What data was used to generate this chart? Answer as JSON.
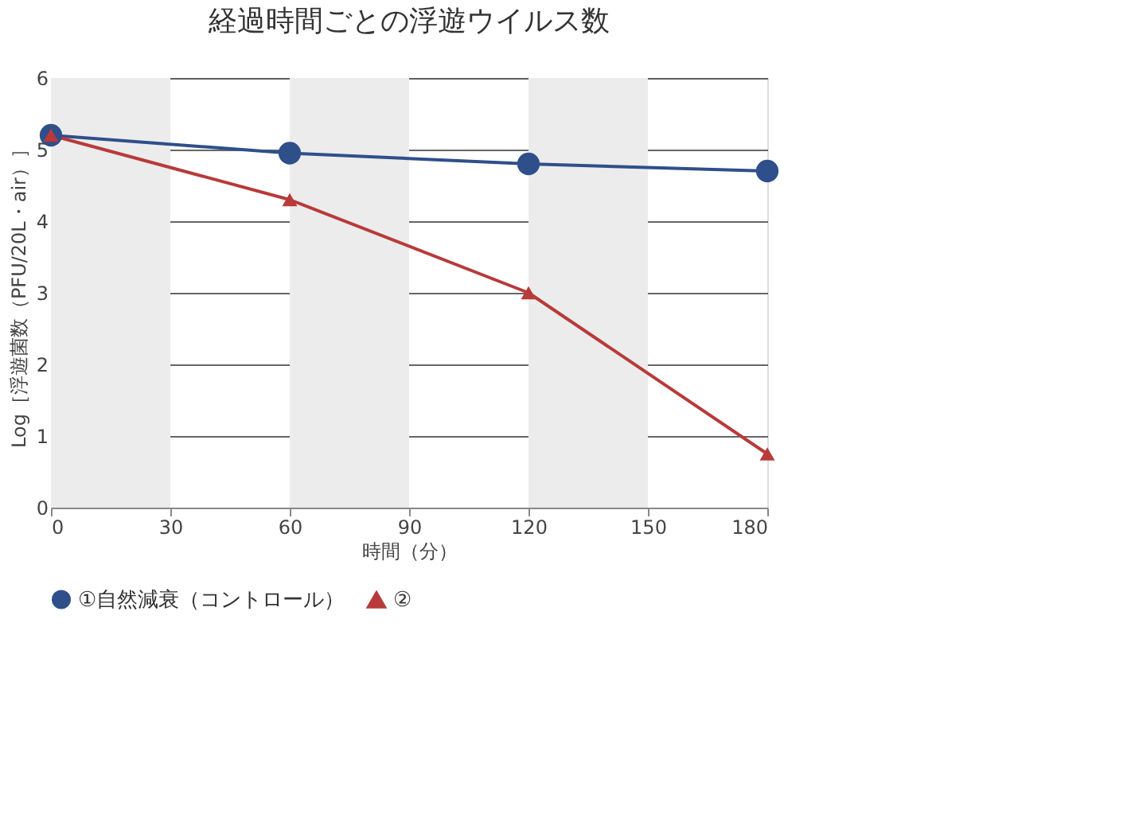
{
  "chart_data": {
    "type": "line",
    "title": "経過時間ごとの浮遊ウイルス数",
    "xlabel": "時間（分）",
    "ylabel": "Log［浮遊菌数（PFU/20L・air）］",
    "x": [
      0,
      60,
      120,
      180
    ],
    "series": [
      {
        "name": "①自然減衰（コントロール）",
        "color": "#2f4f8a",
        "marker": "circle",
        "values": [
          5.2,
          4.95,
          4.8,
          4.7
        ]
      },
      {
        "name": "②",
        "color": "#b83a3a",
        "marker": "triangle",
        "values": [
          5.2,
          4.3,
          3.0,
          0.75
        ]
      }
    ],
    "xlim": [
      0,
      180
    ],
    "xticks": [
      0,
      30,
      60,
      90,
      120,
      150,
      180
    ],
    "ylim": [
      0,
      6
    ],
    "yticks": [
      0,
      1,
      2,
      3,
      4,
      5,
      6
    ],
    "grid": "y",
    "legend": "bottom",
    "line_style": "solid",
    "bands": [
      {
        "axis": "x",
        "from": 0,
        "to": 30,
        "color": "#ececec"
      },
      {
        "axis": "x",
        "from": 60,
        "to": 90,
        "color": "#ececec"
      },
      {
        "axis": "x",
        "from": 120,
        "to": 150,
        "color": "#ececec"
      }
    ]
  }
}
